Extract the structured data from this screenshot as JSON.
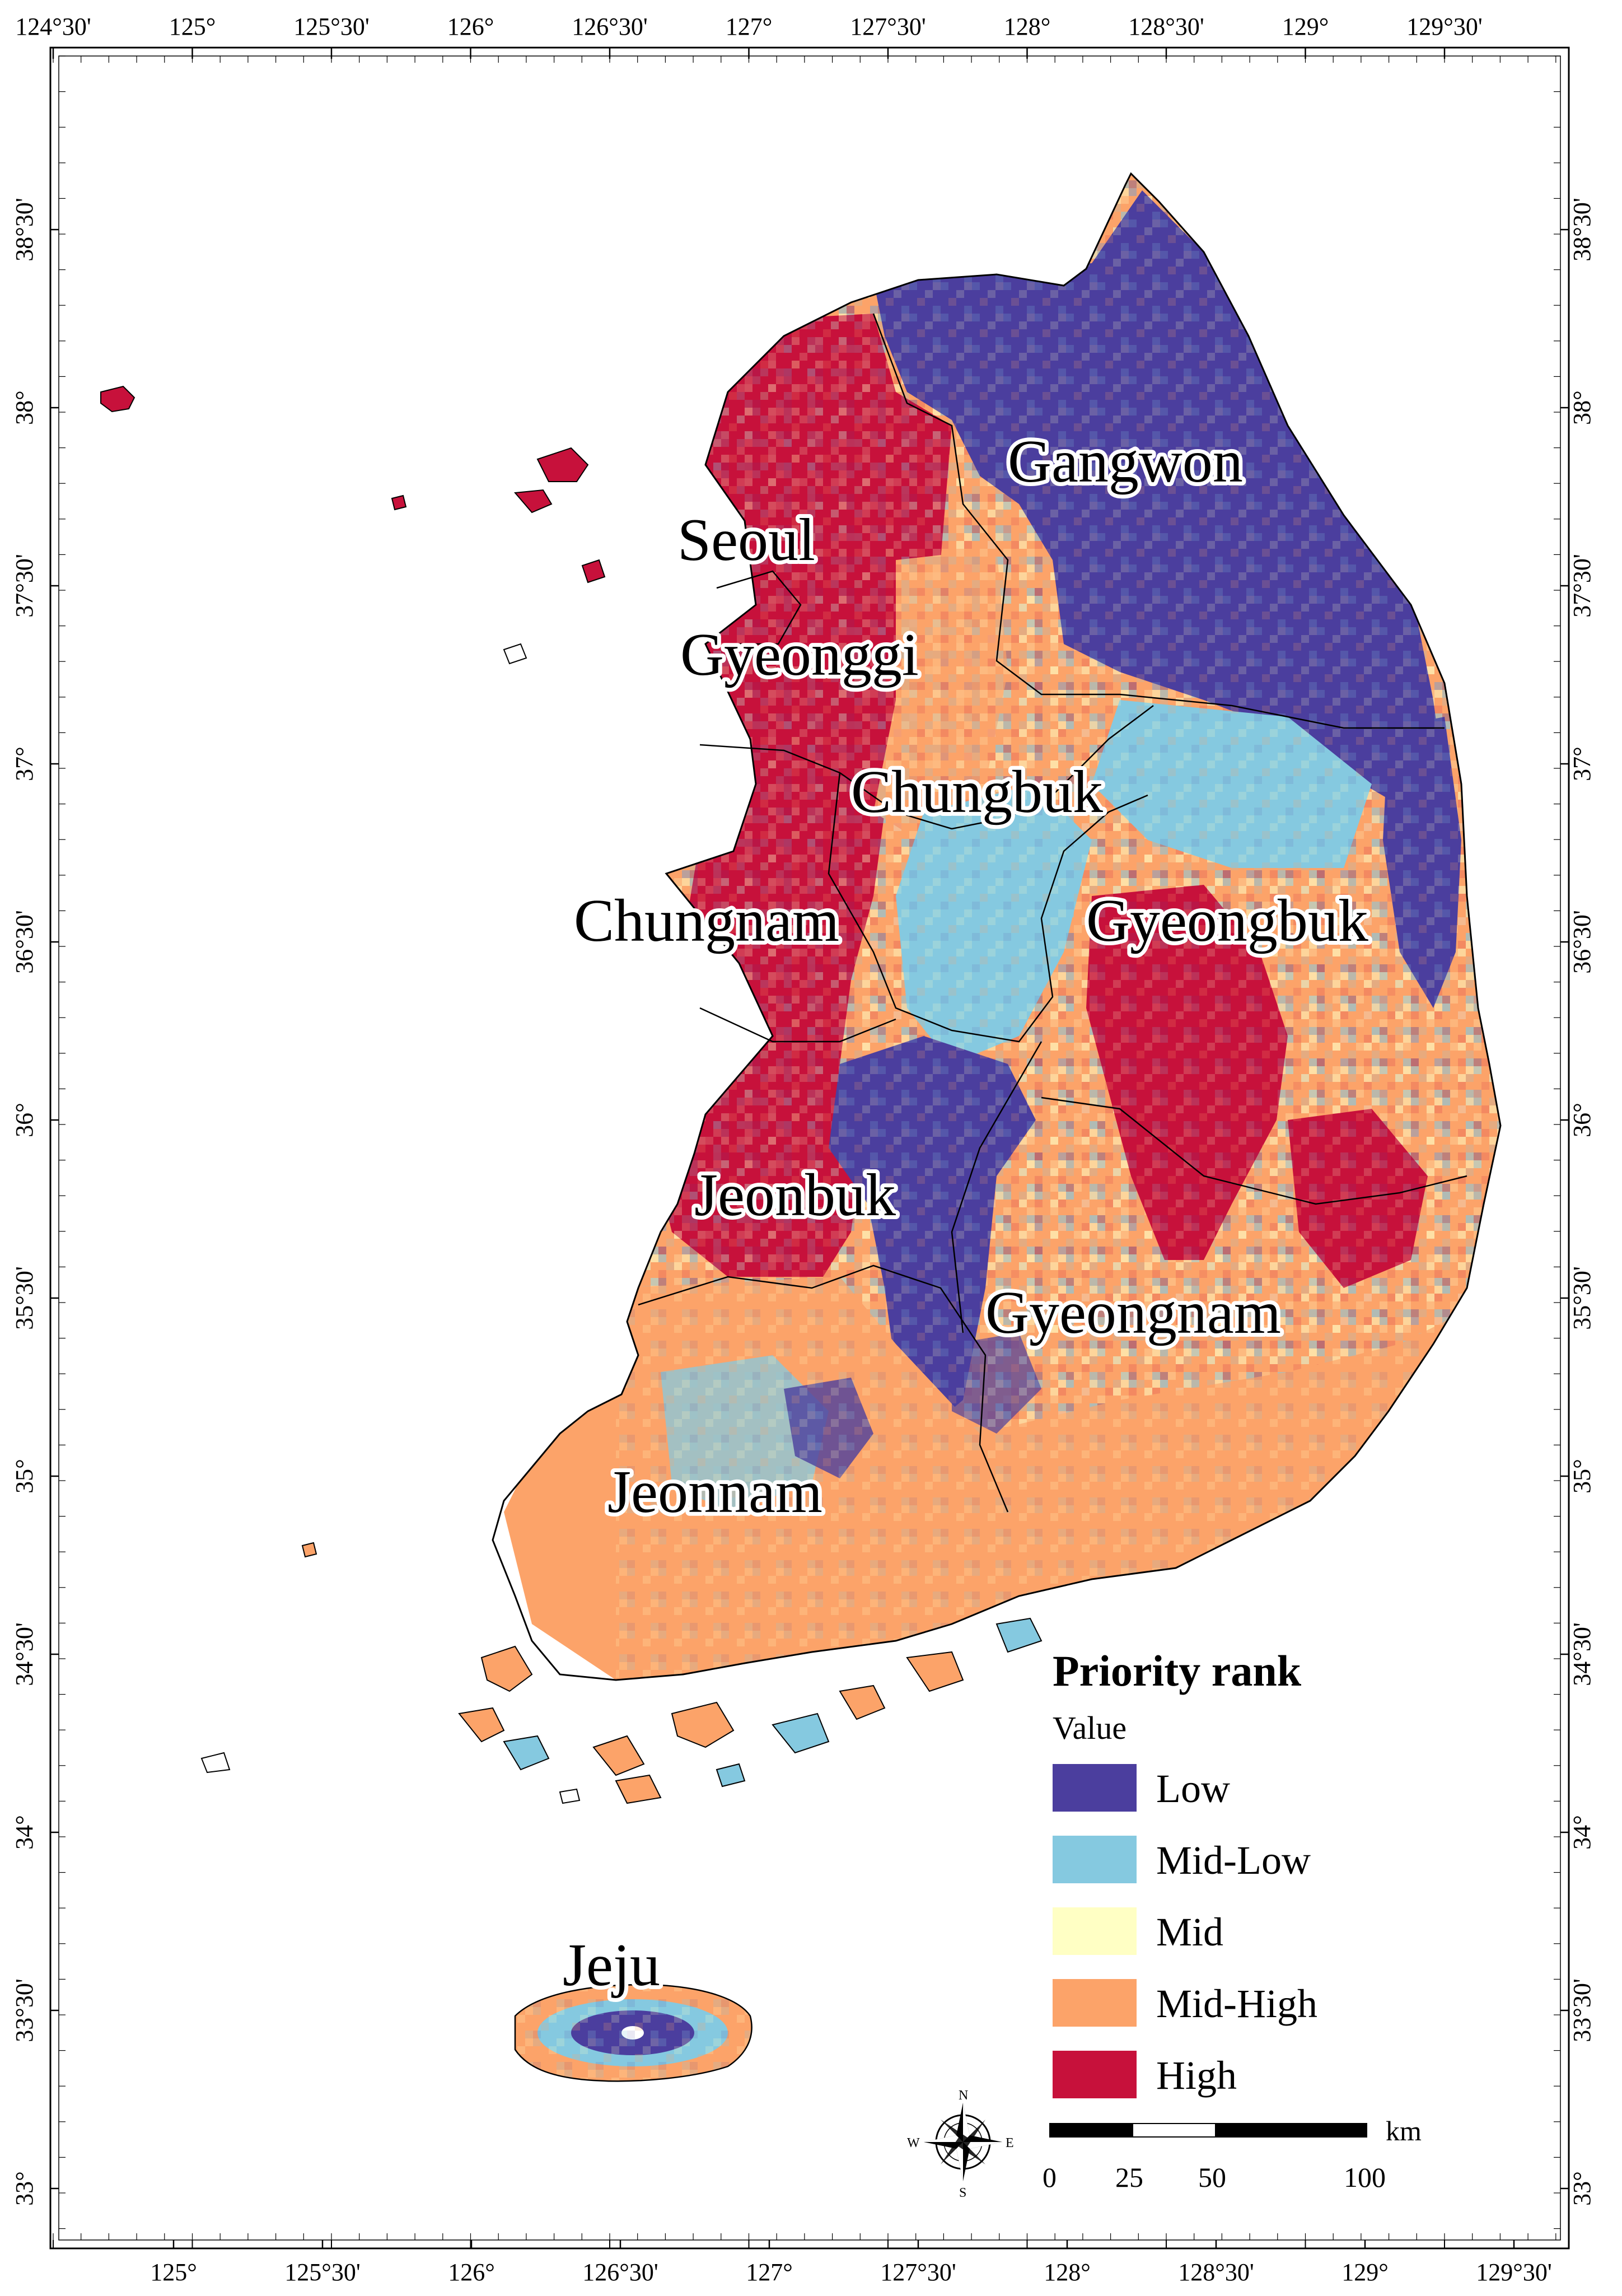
{
  "colors": {
    "low": "#4b3e9e",
    "mid_low": "#85c9e0",
    "mid": "#ffffc4",
    "mid_high": "#fca369",
    "high": "#c7113b",
    "boundary": "#000000",
    "frame": "#000000"
  },
  "graticule": {
    "top": [
      "124°30'",
      "125°",
      "125°30'",
      "126°",
      "126°30'",
      "127°",
      "127°30'",
      "128°",
      "128°30'",
      "129°",
      "129°30'"
    ],
    "bottom": [
      "125°",
      "125°30'",
      "126°",
      "126°30'",
      "127°",
      "127°30'",
      "128°",
      "128°30'",
      "129°",
      "129°30'"
    ],
    "left": [
      "38°30'",
      "38°",
      "37°30'",
      "37°",
      "36°30'",
      "36°",
      "35°30'",
      "35°",
      "34°30'",
      "34°",
      "33°30'",
      "33°"
    ],
    "right": [
      "38°30'",
      "38°",
      "37°30'",
      "37°",
      "36°30'",
      "36°",
      "35°30'",
      "35°",
      "34°30'",
      "34°",
      "33°30'",
      "33°"
    ]
  },
  "regions": {
    "gangwon": "Gangwon",
    "seoul": "Seoul",
    "gyeonggi": "Gyeonggi",
    "chungbuk": "Chungbuk",
    "chungnam": "Chungnam",
    "gyeongbuk": "Gyeongbuk",
    "jeonbuk": "Jeonbuk",
    "gyeongnam": "Gyeongnam",
    "jeonnam": "Jeonnam",
    "jeju": "Jeju"
  },
  "legend": {
    "title": "Priority rank",
    "subtitle": "Value",
    "items": [
      {
        "label": "Low",
        "color": "#4b3e9e"
      },
      {
        "label": "Mid-Low",
        "color": "#85c9e0"
      },
      {
        "label": "Mid",
        "color": "#ffffc4"
      },
      {
        "label": "Mid-High",
        "color": "#fca369"
      },
      {
        "label": "High",
        "color": "#c7113b"
      }
    ]
  },
  "scale_bar": {
    "unit": "km",
    "labels": [
      "0",
      "25",
      "50",
      "100"
    ]
  },
  "compass": {
    "north": "N",
    "south": "S",
    "east": "E",
    "west": "W"
  }
}
